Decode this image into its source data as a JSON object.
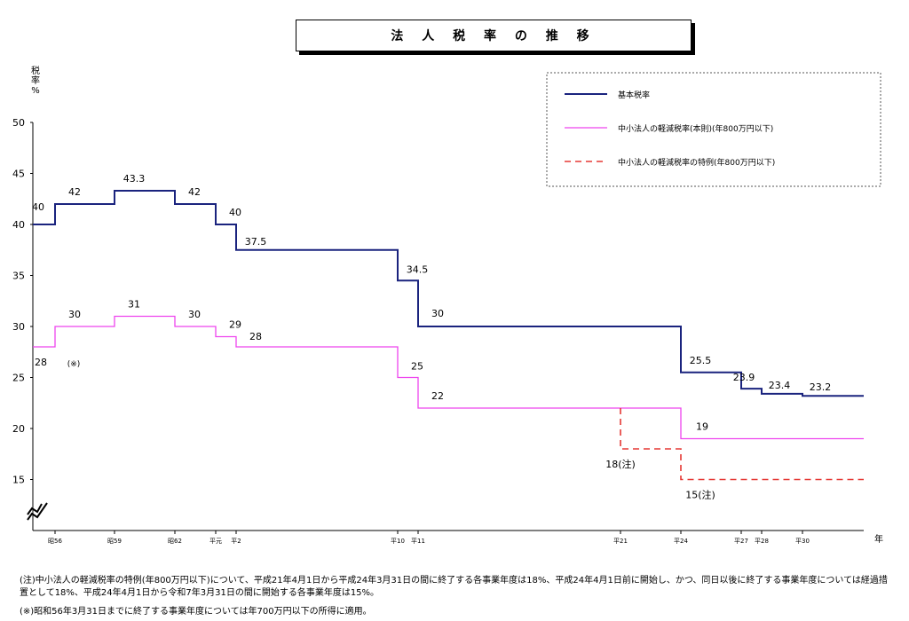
{
  "title": "法 人 税 率 の 推 移",
  "notes": [
    "(注)中小法人の軽減税率の特例(年800万円以下)について、平成21年4月1日から平成24年3月31日の間に終了する各事業年度は18%、平成24年4月1日前に開始し、かつ、同日以後に終了する事業年度については経過措置として18%、平成24年4月1日から令和7年3月31日の間に開始する各事業年度は15%。",
    "(※)昭和56年3月31日までに終了する事業年度については年700万円以下の所得に適用。"
  ],
  "chart_data": {
    "type": "line",
    "step": true,
    "ylabel": "税\n率\n%",
    "xlabel": "年",
    "yticks": [
      15,
      20,
      25,
      30,
      35,
      40,
      45,
      50
    ],
    "ylim": [
      11,
      50
    ],
    "axis_break": true,
    "x_period_labels": [
      "昭56",
      "昭59",
      "昭62",
      "平元",
      "平2",
      "平10",
      "平11",
      "平21",
      "平24",
      "平27",
      "平28",
      "平30"
    ],
    "series": [
      {
        "name": "基本税率",
        "color": "#1a237e",
        "style": "solid",
        "steps": [
          {
            "from": "",
            "value": 40
          },
          {
            "from": "昭56",
            "value": 42
          },
          {
            "from": "昭59",
            "value": 43.3
          },
          {
            "from": "昭62",
            "value": 42
          },
          {
            "from": "平元",
            "value": 40
          },
          {
            "from": "平2",
            "value": 37.5
          },
          {
            "from": "平10",
            "value": 34.5
          },
          {
            "from": "平11",
            "value": 30
          },
          {
            "from": "平24",
            "value": 25.5
          },
          {
            "from": "平27",
            "value": 23.9
          },
          {
            "from": "平28",
            "value": 23.4
          },
          {
            "from": "平30",
            "value": 23.2
          }
        ]
      },
      {
        "name": "中小法人の軽減税率(本則)(年800万円以下)",
        "color": "#ee44ee",
        "style": "solid",
        "steps": [
          {
            "from": "",
            "value": 28
          },
          {
            "from": "昭56",
            "value": 30
          },
          {
            "from": "昭59",
            "value": 31
          },
          {
            "from": "昭62",
            "value": 30
          },
          {
            "from": "平元",
            "value": 29
          },
          {
            "from": "平2",
            "value": 28
          },
          {
            "from": "平10",
            "value": 25
          },
          {
            "from": "平11",
            "value": 22
          },
          {
            "from": "平24",
            "value": 19
          }
        ]
      },
      {
        "name": "中小法人の軽減税率の特例(年800万円以下)",
        "color": "#e53935",
        "style": "dashed",
        "steps": [
          {
            "from": "平21",
            "value": 18
          },
          {
            "from": "平24",
            "value": 15
          }
        ]
      }
    ],
    "data_labels": [
      {
        "text": "40",
        "x": "",
        "value": 40,
        "series": 0
      },
      {
        "text": "42",
        "x": "昭56",
        "value": 42,
        "series": 0
      },
      {
        "text": "43.3",
        "x": "昭59",
        "value": 43.3,
        "series": 0
      },
      {
        "text": "42",
        "x": "昭62",
        "value": 42,
        "series": 0
      },
      {
        "text": "40",
        "x": "平元",
        "value": 40,
        "series": 0
      },
      {
        "text": "37.5",
        "x": "平2",
        "value": 37.5,
        "series": 0
      },
      {
        "text": "34.5",
        "x": "平10",
        "value": 34.5,
        "series": 0
      },
      {
        "text": "30",
        "x": "平11",
        "value": 30,
        "series": 0
      },
      {
        "text": "25.5",
        "x": "平24",
        "value": 25.5,
        "series": 0
      },
      {
        "text": "23.9",
        "x": "平27",
        "value": 23.9,
        "series": 0
      },
      {
        "text": "23.4",
        "x": "平28",
        "value": 23.4,
        "series": 0
      },
      {
        "text": "23.2",
        "x": "平30",
        "value": 23.2,
        "series": 0
      },
      {
        "text": "28",
        "x": "",
        "value": 28,
        "series": 1
      },
      {
        "text": "(※)",
        "x": "",
        "value": 28,
        "series": 1
      },
      {
        "text": "30",
        "x": "昭56",
        "value": 30,
        "series": 1
      },
      {
        "text": "31",
        "x": "昭59",
        "value": 31,
        "series": 1
      },
      {
        "text": "30",
        "x": "昭62",
        "value": 30,
        "series": 1
      },
      {
        "text": "29",
        "x": "平元",
        "value": 29,
        "series": 1
      },
      {
        "text": "28",
        "x": "平2",
        "value": 28,
        "series": 1
      },
      {
        "text": "25",
        "x": "平10",
        "value": 25,
        "series": 1
      },
      {
        "text": "22",
        "x": "平11",
        "value": 22,
        "series": 1
      },
      {
        "text": "19",
        "x": "平24",
        "value": 19,
        "series": 1
      },
      {
        "text": "18(注)",
        "x": "平21",
        "value": 18,
        "series": 2
      },
      {
        "text": "15(注)",
        "x": "平24",
        "value": 15,
        "series": 2
      }
    ],
    "legend_position": "top-right"
  }
}
